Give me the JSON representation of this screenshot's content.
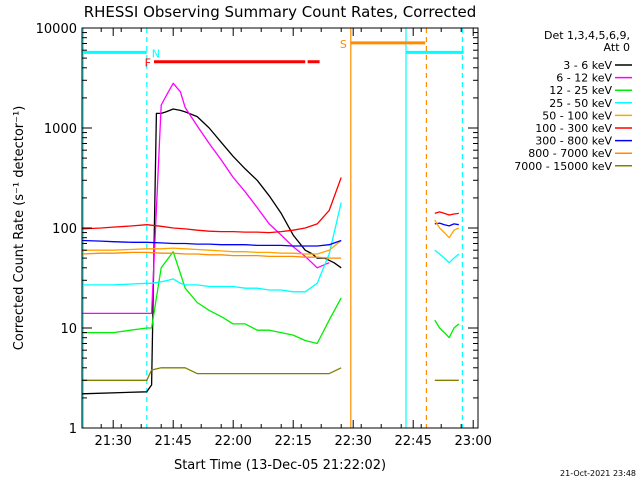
{
  "chart_data": {
    "type": "line",
    "title": "RHESSI Observing Summary Count Rates, Corrected",
    "xlabel": "Start Time (13-Dec-05 21:22:02)",
    "ylabel": "Corrected Count Rate (s⁻¹ detector⁻¹)",
    "yscale": "log",
    "ylim": [
      1,
      10000
    ],
    "xlim_minutes": [
      21.37,
      23.02
    ],
    "x_ticks": [
      {
        "label": "21:30",
        "t": 21.5
      },
      {
        "label": "21:45",
        "t": 21.75
      },
      {
        "label": "22:00",
        "t": 22.0
      },
      {
        "label": "22:15",
        "t": 22.25
      },
      {
        "label": "22:30",
        "t": 22.5
      },
      {
        "label": "22:45",
        "t": 22.75
      },
      {
        "label": "23:00",
        "t": 23.0
      }
    ],
    "y_ticks": [
      {
        "label": "1",
        "v": 1
      },
      {
        "label": "10",
        "v": 10
      },
      {
        "label": "100",
        "v": 100
      },
      {
        "label": "1000",
        "v": 1000
      },
      {
        "label": "10000",
        "v": 10000
      }
    ],
    "legend_header": [
      "Det 1,3,4,5,6,9,",
      "Att 0"
    ],
    "legend_position": "top-right",
    "timestamp": "21-Oct-2021 23:48",
    "series": [
      {
        "name": "3 - 6 keV",
        "color": "#000000",
        "x": [
          21.37,
          21.64,
          21.66,
          21.68,
          21.7,
          21.72,
          21.75,
          21.78,
          21.8,
          21.85,
          21.9,
          21.95,
          22.0,
          22.05,
          22.1,
          22.15,
          22.2,
          22.25,
          22.3,
          22.33,
          22.35,
          22.38,
          22.42,
          22.45
        ],
        "y": [
          2.2,
          2.3,
          2.7,
          1400,
          1400,
          1450,
          1550,
          1500,
          1450,
          1300,
          1000,
          720,
          520,
          390,
          300,
          210,
          140,
          85,
          60,
          55,
          50,
          50,
          45,
          40
        ]
      },
      {
        "name": "6 - 12 keV",
        "color": "#ff00ff",
        "x": [
          21.37,
          21.64,
          21.66,
          21.7,
          21.73,
          21.75,
          21.78,
          21.8,
          21.85,
          21.9,
          21.95,
          22.0,
          22.05,
          22.1,
          22.15,
          22.2,
          22.25,
          22.3,
          22.35,
          22.4
        ],
        "y": [
          14,
          14,
          14,
          1700,
          2300,
          2800,
          2300,
          1600,
          1050,
          700,
          480,
          320,
          230,
          160,
          110,
          85,
          65,
          52,
          40,
          45
        ]
      },
      {
        "name": "12 - 25 keV",
        "color": "#00ee00",
        "x": [
          21.37,
          21.5,
          21.64,
          21.66,
          21.7,
          21.73,
          21.75,
          21.78,
          21.8,
          21.85,
          21.9,
          21.95,
          22.0,
          22.05,
          22.1,
          22.15,
          22.2,
          22.25,
          22.3,
          22.35,
          22.4,
          22.45
        ],
        "y": [
          9,
          9,
          10,
          10,
          40,
          50,
          58,
          35,
          25,
          18,
          15,
          13,
          11,
          11,
          9.5,
          9.5,
          9,
          8.5,
          7.5,
          7,
          12,
          20
        ]
      },
      {
        "name": "25 - 50 keV",
        "color": "#00ffff",
        "x": [
          21.37,
          21.5,
          21.64,
          21.66,
          21.7,
          21.73,
          21.75,
          21.78,
          21.8,
          21.85,
          21.9,
          21.95,
          22.0,
          22.05,
          22.1,
          22.15,
          22.2,
          22.25,
          22.3,
          22.35,
          22.4,
          22.45
        ],
        "y": [
          27,
          27,
          28,
          28,
          29,
          30,
          31,
          28,
          27,
          27,
          26,
          26,
          26,
          25,
          25,
          24,
          24,
          23,
          23,
          28,
          55,
          180
        ]
      },
      {
        "name": "50 - 100 keV",
        "color": "#ffa500",
        "x": [
          21.37,
          21.5,
          21.64,
          21.7,
          21.75,
          21.8,
          21.85,
          21.9,
          21.95,
          22.0,
          22.05,
          22.1,
          22.15,
          22.2,
          22.25,
          22.3,
          22.35,
          22.4,
          22.45
        ],
        "y": [
          60,
          60,
          62,
          62,
          63,
          62,
          61,
          60,
          59,
          58,
          58,
          57,
          57,
          56,
          56,
          55,
          55,
          60,
          75
        ]
      },
      {
        "name": "100 - 300 keV",
        "color": "#ff0000",
        "x": [
          21.37,
          21.45,
          21.5,
          21.58,
          21.64,
          21.7,
          21.75,
          21.8,
          21.85,
          21.9,
          21.95,
          22.0,
          22.05,
          22.1,
          22.15,
          22.2,
          22.25,
          22.3,
          22.35,
          22.4,
          22.45
        ],
        "y": [
          98,
          100,
          102,
          105,
          108,
          104,
          100,
          98,
          95,
          93,
          92,
          92,
          91,
          91,
          90,
          92,
          95,
          100,
          110,
          150,
          320
        ]
      },
      {
        "name": "300 - 800 keV",
        "color": "#0000ff",
        "x": [
          21.37,
          21.45,
          21.5,
          21.58,
          21.64,
          21.7,
          21.75,
          21.8,
          21.85,
          21.9,
          21.95,
          22.0,
          22.05,
          22.1,
          22.15,
          22.2,
          22.25,
          22.3,
          22.35,
          22.4,
          22.45
        ],
        "y": [
          75,
          74,
          73,
          72,
          72,
          71,
          70,
          70,
          69,
          69,
          68,
          68,
          68,
          67,
          67,
          67,
          66,
          66,
          66,
          68,
          75
        ]
      },
      {
        "name": "800 - 7000 keV",
        "color": "#ff8c00",
        "x": [
          21.37,
          21.45,
          21.5,
          21.58,
          21.64,
          21.7,
          21.75,
          21.8,
          21.85,
          21.9,
          21.95,
          22.0,
          22.05,
          22.1,
          22.15,
          22.2,
          22.25,
          22.3,
          22.35,
          22.4,
          22.45
        ],
        "y": [
          55,
          56,
          56,
          57,
          57,
          56,
          56,
          55,
          55,
          54,
          54,
          53,
          53,
          53,
          52,
          52,
          52,
          51,
          51,
          50,
          50
        ]
      },
      {
        "name": "7000 - 15000 keV",
        "color": "#808000",
        "x": [
          21.37,
          21.45,
          21.5,
          21.58,
          21.64,
          21.66,
          21.7,
          21.75,
          21.8,
          21.85,
          21.9,
          21.95,
          22.0,
          22.05,
          22.1,
          22.15,
          22.2,
          22.25,
          22.3,
          22.35,
          22.4,
          22.45
        ],
        "y": [
          3,
          3,
          3,
          3,
          3,
          3.8,
          4,
          4,
          4,
          3.5,
          3.5,
          3.5,
          3.5,
          3.5,
          3.5,
          3.5,
          3.5,
          3.5,
          3.5,
          3.5,
          3.5,
          4
        ]
      },
      {
        "name": "",
        "color": "#ff0000",
        "segment": "return-100-300",
        "x": [
          22.84,
          22.86,
          22.88,
          22.9,
          22.92,
          22.94
        ],
        "y": [
          140,
          145,
          140,
          135,
          138,
          140
        ]
      },
      {
        "name": "",
        "color": "#0000ff",
        "segment": "return-300-800",
        "x": [
          22.84,
          22.86,
          22.88,
          22.9,
          22.92,
          22.94
        ],
        "y": [
          110,
          112,
          108,
          105,
          110,
          108
        ]
      },
      {
        "name": "",
        "color": "#ffa500",
        "segment": "return-50-100",
        "x": [
          22.84,
          22.86,
          22.88,
          22.9,
          22.92,
          22.94
        ],
        "y": [
          120,
          100,
          90,
          80,
          95,
          100
        ]
      },
      {
        "name": "",
        "color": "#00ffff",
        "segment": "return-25-50",
        "x": [
          22.84,
          22.86,
          22.88,
          22.9,
          22.92,
          22.94
        ],
        "y": [
          60,
          55,
          50,
          45,
          50,
          55
        ]
      },
      {
        "name": "",
        "color": "#00ee00",
        "segment": "return-12-25",
        "x": [
          22.84,
          22.86,
          22.88,
          22.9,
          22.92,
          22.94
        ],
        "y": [
          12,
          10,
          9,
          8,
          10,
          11
        ]
      },
      {
        "name": "",
        "color": "#808000",
        "segment": "return-7000-15000",
        "x": [
          22.84,
          22.86,
          22.88,
          22.9,
          22.92,
          22.94
        ],
        "y": [
          3,
          3,
          3,
          3,
          3,
          3
        ]
      }
    ],
    "flag_bars": [
      {
        "label": "N",
        "color": "#00ffff",
        "x0": 21.37,
        "x1": 21.64,
        "y": 5700
      },
      {
        "label": "",
        "color": "#00ffff",
        "x0": 22.72,
        "x1": 22.96,
        "y": 5700
      },
      {
        "label": "F",
        "color": "#ff0000",
        "x0": 21.67,
        "x1": 22.3,
        "y": 4600
      },
      {
        "label": "",
        "color": "#ff0000",
        "x0": 22.31,
        "x1": 22.36,
        "y": 4600
      },
      {
        "label": "S",
        "color": "#ff8c00",
        "x0": 22.49,
        "x1": 22.72,
        "y": 7100
      },
      {
        "label": "",
        "color": "#ff8c00",
        "x0": 22.72,
        "x1": 22.8,
        "y": 7100
      }
    ],
    "vertical_markers": [
      {
        "color": "#00ffff",
        "x": 21.375,
        "style": "solid"
      },
      {
        "color": "#00ffff",
        "x": 21.64,
        "style": "dashed"
      },
      {
        "color": "#ff8c00",
        "x": 22.49,
        "style": "solid"
      },
      {
        "color": "#00ffff",
        "x": 22.72,
        "style": "solid"
      },
      {
        "color": "#ff8c00",
        "x": 22.805,
        "style": "dashed"
      },
      {
        "color": "#00ffff",
        "x": 22.955,
        "style": "dashed"
      }
    ]
  }
}
